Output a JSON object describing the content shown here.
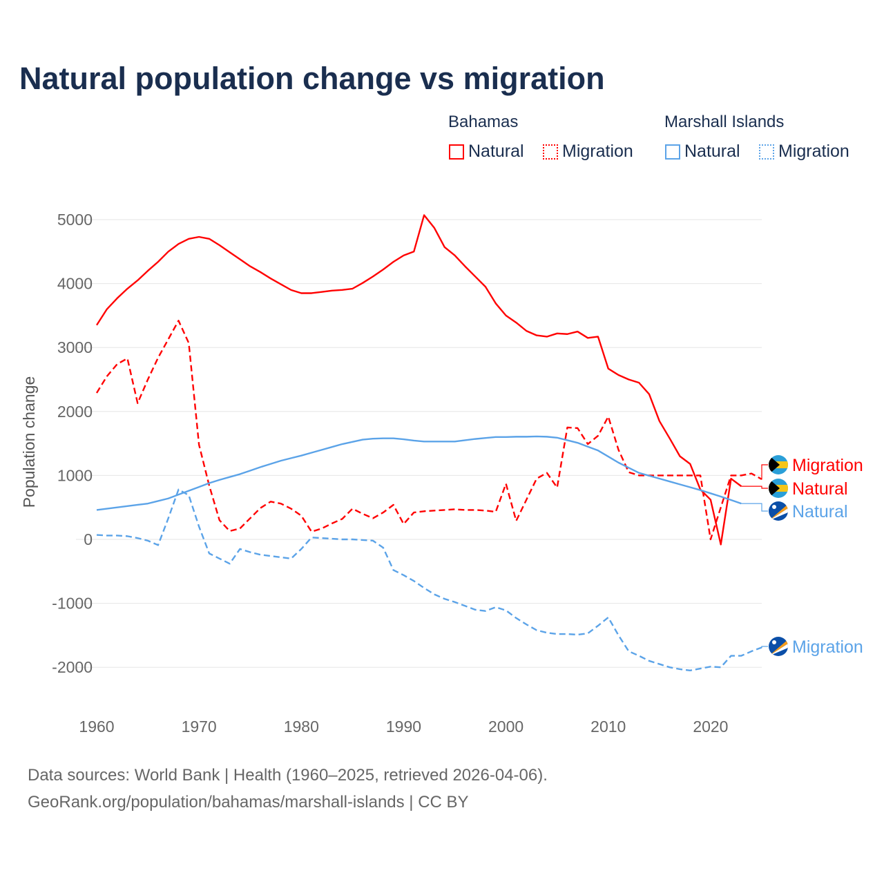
{
  "chart_data": {
    "type": "line",
    "title": "Natural population change vs migration",
    "ylabel": "Population change",
    "xlabel": "",
    "ylim": [
      -2500,
      5300
    ],
    "xlim": [
      1960,
      2025
    ],
    "yticks": [
      "-2000",
      "-1000",
      "0",
      "1000",
      "2000",
      "3000",
      "4000",
      "5000"
    ],
    "ytick_values": [
      -2000,
      -1000,
      0,
      1000,
      2000,
      3000,
      4000,
      5000
    ],
    "xticks": [
      "1960",
      "1970",
      "1980",
      "1990",
      "2000",
      "2010",
      "2020"
    ],
    "xtick_values": [
      1960,
      1970,
      1980,
      1990,
      2000,
      2010,
      2020
    ],
    "grid": true,
    "legend": {
      "groups": [
        {
          "name": "Bahamas",
          "items": [
            "Natural",
            "Migration"
          ]
        },
        {
          "name": "Marshall Islands",
          "items": [
            "Natural",
            "Migration"
          ]
        }
      ],
      "placement": "top-right"
    },
    "series": [
      {
        "name": "Bahamas Natural",
        "label": "Natural",
        "color": "#ff0000",
        "dash": false,
        "x_start": 1960,
        "values": [
          3350,
          3600,
          3770,
          3920,
          4050,
          4200,
          4340,
          4500,
          4620,
          4700,
          4730,
          4700,
          4600,
          4490,
          4380,
          4270,
          4180,
          4080,
          3990,
          3900,
          3850,
          3850,
          3870,
          3890,
          3900,
          3920,
          4010,
          4110,
          4220,
          4340,
          4440,
          4500,
          5070,
          4870,
          4570,
          4440,
          4270,
          4110,
          3950,
          3690,
          3500,
          3390,
          3260,
          3190,
          3170,
          3220,
          3210,
          3250,
          3150,
          3170,
          2670,
          2570,
          2500,
          2450,
          2270,
          1850,
          1580,
          1300,
          1180,
          780,
          620,
          -80,
          950,
          830
        ]
      },
      {
        "name": "Bahamas Migration",
        "label": "Migration",
        "color": "#ff0000",
        "dash": true,
        "x_start": 1960,
        "values": [
          2290,
          2550,
          2740,
          2830,
          2130,
          2500,
          2840,
          3130,
          3420,
          3070,
          1480,
          840,
          300,
          130,
          170,
          330,
          490,
          590,
          560,
          480,
          370,
          120,
          170,
          250,
          320,
          480,
          400,
          330,
          420,
          540,
          240,
          420,
          440,
          450,
          460,
          470,
          460,
          460,
          450,
          430,
          870,
          290,
          620,
          950,
          1040,
          810,
          1750,
          1740,
          1490,
          1620,
          1920,
          1400,
          1050,
          1000,
          1000,
          1000,
          1000,
          1000,
          1000,
          1000,
          0,
          500,
          1000,
          1000,
          1030,
          940
        ]
      },
      {
        "name": "Marshall Islands Natural",
        "label": "Natural",
        "color": "#5ba3e8",
        "dash": false,
        "x_start": 1960,
        "values": [
          460,
          480,
          500,
          520,
          540,
          560,
          600,
          640,
          700,
          760,
          820,
          880,
          930,
          975,
          1020,
          1075,
          1130,
          1180,
          1230,
          1270,
          1310,
          1355,
          1400,
          1445,
          1490,
          1525,
          1560,
          1575,
          1580,
          1580,
          1565,
          1545,
          1530,
          1530,
          1530,
          1530,
          1550,
          1570,
          1585,
          1600,
          1600,
          1605,
          1605,
          1610,
          1605,
          1590,
          1550,
          1510,
          1450,
          1390,
          1295,
          1200,
          1120,
          1040,
          995,
          950,
          905,
          860,
          815,
          770,
          720,
          670,
          615,
          560
        ]
      },
      {
        "name": "Marshall Islands Migration",
        "label": "Migration",
        "color": "#5ba3e8",
        "dash": true,
        "x_start": 1960,
        "values": [
          70,
          60,
          60,
          50,
          20,
          -20,
          -90,
          330,
          780,
          690,
          200,
          -220,
          -300,
          -380,
          -150,
          -200,
          -240,
          -260,
          -280,
          -300,
          -150,
          30,
          20,
          10,
          0,
          0,
          -10,
          -20,
          -130,
          -480,
          -560,
          -650,
          -760,
          -860,
          -930,
          -980,
          -1040,
          -1100,
          -1120,
          -1060,
          -1110,
          -1230,
          -1330,
          -1420,
          -1460,
          -1480,
          -1480,
          -1490,
          -1470,
          -1350,
          -1220,
          -1500,
          -1750,
          -1820,
          -1900,
          -1950,
          -2000,
          -2030,
          -2050,
          -2020,
          -1990,
          -2000,
          -1820,
          -1820,
          -1750,
          -1690
        ]
      }
    ]
  },
  "legend_labels": {
    "bahamas": "Bahamas",
    "marshall": "Marshall Islands",
    "natural": "Natural",
    "migration": "Migration"
  },
  "source": {
    "line1": "Data sources: World Bank | Health (1960–2025, retrieved 2026-04-06).",
    "line2": "GeoRank.org/population/bahamas/marshall-islands | CC BY"
  }
}
